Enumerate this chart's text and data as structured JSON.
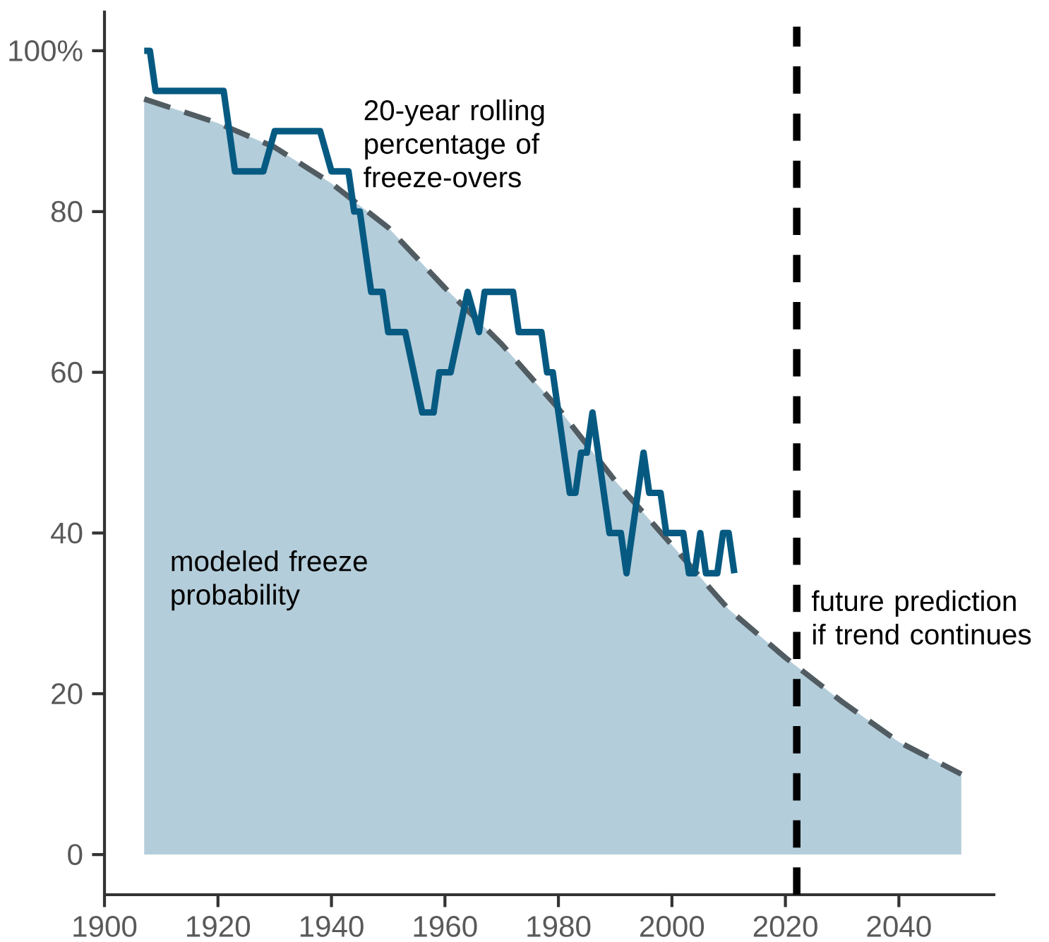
{
  "chart_data": {
    "type": "line",
    "xlim": [
      1900,
      2057
    ],
    "ylim": [
      -5,
      105
    ],
    "xticks": [
      1900,
      1920,
      1940,
      1960,
      1980,
      2000,
      2020,
      2040
    ],
    "yticks": [
      0,
      20,
      40,
      60,
      80,
      {
        "value": 100,
        "label": "100%"
      }
    ],
    "series": [
      {
        "name": "modeled freeze probability",
        "type": "area",
        "color": "#b4cdda",
        "line_style": "dashed",
        "x": [
          1907,
          1920,
          1930,
          1940,
          1950,
          1960,
          1970,
          1980,
          1990,
          2000,
          2010,
          2020,
          2030,
          2040,
          2051
        ],
        "values": [
          94,
          91,
          88,
          83.5,
          78,
          70.5,
          63.5,
          55.5,
          46.5,
          38.5,
          30.5,
          24.5,
          19,
          14,
          10
        ]
      },
      {
        "name": "20-year rolling percentage of freeze-overs",
        "color": "#065a82",
        "line_style": "solid",
        "x": [
          1907,
          1908,
          1909,
          1921,
          1923,
          1928,
          1930,
          1938,
          1940,
          1943,
          1944,
          1945,
          1947,
          1949,
          1950,
          1953,
          1956,
          1958,
          1959,
          1961,
          1964,
          1966,
          1967,
          1972,
          1973,
          1977,
          1978,
          1979,
          1982,
          1983,
          1984,
          1985,
          1986,
          1989,
          1991,
          1992,
          1995,
          1996,
          1998,
          1999,
          2002,
          2003,
          2004,
          2005,
          2006,
          2008,
          2009,
          2010,
          2011
        ],
        "values": [
          100,
          100,
          95,
          95,
          85,
          85,
          90,
          90,
          85,
          85,
          80,
          80,
          70,
          70,
          65,
          65,
          55,
          55,
          60,
          60,
          70,
          65,
          70,
          70,
          65,
          65,
          60,
          60,
          45,
          45,
          50,
          50,
          55,
          40,
          40,
          35,
          50,
          45,
          45,
          40,
          40,
          35,
          35,
          40,
          35,
          35,
          40,
          40,
          35
        ]
      }
    ],
    "ref_lines": [
      {
        "axis": "x",
        "value": 2022,
        "label": "future prediction if trend continues",
        "color": "#000000",
        "line_style": "dashed"
      }
    ]
  }
}
